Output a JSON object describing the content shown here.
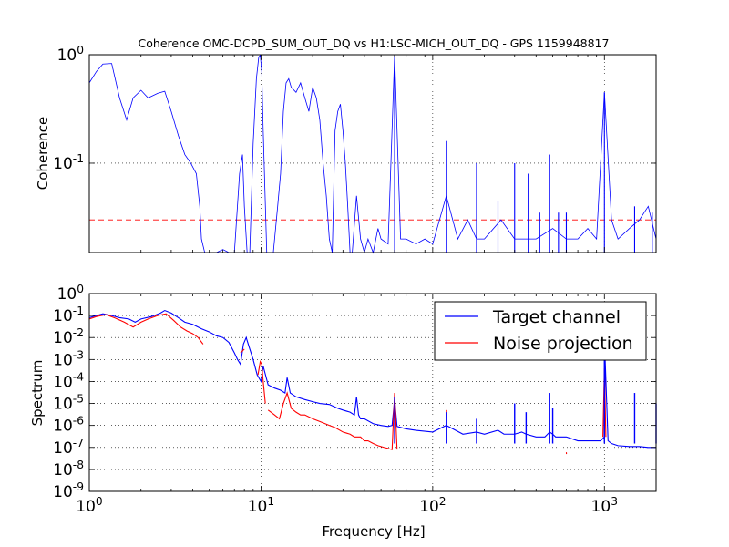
{
  "title": "Coherence OMC-DCPD_SUM_OUT_DQ vs H1:LSC-MICH_OUT_DQ - GPS 1159948817",
  "chart_data": [
    {
      "type": "line",
      "panel": "top",
      "ylabel": "Coherence",
      "xscale": "log",
      "yscale": "log",
      "xlim": [
        1,
        2000
      ],
      "ylim": [
        0.015,
        1
      ],
      "yticks": [
        {
          "v": 1,
          "label": "10^0"
        },
        {
          "v": 0.1,
          "label": "10^-1"
        }
      ],
      "grid": true,
      "colors": {
        "coherence": "#0000ff",
        "threshold": "#ff0000"
      },
      "threshold": 0.03,
      "series": [
        {
          "key": "coherence",
          "x": [
            1,
            1.1,
            1.2,
            1.35,
            1.5,
            1.65,
            1.8,
            2.0,
            2.2,
            2.5,
            2.75,
            3.0,
            3.3,
            3.6,
            3.9,
            4.2,
            4.4,
            4.5,
            4.7,
            5.0,
            5.5,
            6.0,
            6.5,
            7.0,
            7.5,
            7.8,
            8.0,
            8.3,
            8.6,
            9.0,
            9.4,
            9.7,
            9.9,
            10.1,
            10.3,
            10.8,
            11.3,
            11.8,
            12.5,
            13.0,
            13.5,
            14.0,
            14.5,
            15.0,
            16.0,
            17.0,
            18.0,
            19.0,
            20.0,
            21.0,
            22.0,
            23.0,
            24.0,
            25.0,
            26.0,
            27.0,
            28.0,
            29.0,
            30.0,
            31.0,
            32.0,
            33.0,
            34.0,
            36.0,
            38.0,
            40.0,
            42.0,
            45.0,
            48.0,
            50.0,
            55.0,
            60.0,
            65.0,
            70.0,
            80.0,
            90.0,
            100,
            120,
            140,
            160,
            180,
            200,
            250,
            300,
            400,
            500,
            600,
            700,
            800,
            900,
            1000,
            1100,
            1200,
            1400,
            1600,
            1800,
            2000
          ],
          "y": [
            0.55,
            0.7,
            0.82,
            0.83,
            0.4,
            0.25,
            0.4,
            0.47,
            0.4,
            0.44,
            0.46,
            0.3,
            0.18,
            0.12,
            0.1,
            0.08,
            0.04,
            0.02,
            0.015,
            0.015,
            0.015,
            0.016,
            0.015,
            0.015,
            0.08,
            0.12,
            0.04,
            0.015,
            0.015,
            0.15,
            0.6,
            0.95,
            0.99,
            0.7,
            0.2,
            0.015,
            0.015,
            0.015,
            0.04,
            0.08,
            0.3,
            0.55,
            0.6,
            0.5,
            0.45,
            0.55,
            0.4,
            0.3,
            0.5,
            0.4,
            0.25,
            0.1,
            0.05,
            0.02,
            0.015,
            0.2,
            0.3,
            0.35,
            0.2,
            0.1,
            0.04,
            0.015,
            0.015,
            0.05,
            0.02,
            0.015,
            0.02,
            0.015,
            0.025,
            0.02,
            0.018,
            1.0,
            0.02,
            0.02,
            0.018,
            0.02,
            0.018,
            0.05,
            0.02,
            0.03,
            0.02,
            0.02,
            0.03,
            0.02,
            0.02,
            0.025,
            0.02,
            0.02,
            0.025,
            0.02,
            0.45,
            0.03,
            0.02,
            0.025,
            0.03,
            0.04,
            0.02
          ]
        }
      ],
      "spikes": [
        {
          "x": 60,
          "y": 1.0
        },
        {
          "x": 120,
          "y": 0.16
        },
        {
          "x": 180,
          "y": 0.1
        },
        {
          "x": 240,
          "y": 0.045
        },
        {
          "x": 300,
          "y": 0.1
        },
        {
          "x": 360,
          "y": 0.08
        },
        {
          "x": 420,
          "y": 0.035
        },
        {
          "x": 480,
          "y": 0.12
        },
        {
          "x": 540,
          "y": 0.035
        },
        {
          "x": 600,
          "y": 0.035
        },
        {
          "x": 1000,
          "y": 0.45
        },
        {
          "x": 1500,
          "y": 0.04
        },
        {
          "x": 1900,
          "y": 0.035
        }
      ]
    },
    {
      "type": "line",
      "panel": "bottom",
      "ylabel": "Spectrum",
      "xlabel": "Frequency [Hz]",
      "xscale": "log",
      "yscale": "log",
      "xlim": [
        1,
        2000
      ],
      "ylim": [
        1e-09,
        1
      ],
      "xticks": [
        {
          "v": 1,
          "label": "10^0"
        },
        {
          "v": 10,
          "label": "10^1"
        },
        {
          "v": 100,
          "label": "10^2"
        },
        {
          "v": 1000,
          "label": "10^3"
        }
      ],
      "yticks": [
        {
          "v": 1,
          "label": "10^0"
        },
        {
          "v": 0.1,
          "label": "10^-1"
        },
        {
          "v": 0.01,
          "label": "10^-2"
        },
        {
          "v": 0.001,
          "label": "10^-3"
        },
        {
          "v": 0.0001,
          "label": "10^-4"
        },
        {
          "v": 1e-05,
          "label": "10^-5"
        },
        {
          "v": 1e-06,
          "label": "10^-6"
        },
        {
          "v": 1e-07,
          "label": "10^-7"
        },
        {
          "v": 1e-08,
          "label": "10^-8"
        },
        {
          "v": 1e-09,
          "label": "10^-9"
        }
      ],
      "grid": true,
      "legend": {
        "position": "top-right",
        "entries": [
          {
            "name": "Target channel",
            "color": "#0000ff"
          },
          {
            "name": "Noise projection",
            "color": "#ff0000"
          }
        ]
      },
      "series": [
        {
          "name": "Target channel",
          "color": "#0000ff",
          "x": [
            1,
            1.1,
            1.2,
            1.35,
            1.5,
            1.7,
            1.85,
            2.0,
            2.3,
            2.6,
            2.75,
            3.0,
            3.3,
            3.6,
            4.0,
            4.5,
            5.0,
            5.5,
            6.0,
            6.5,
            7.0,
            7.3,
            7.6,
            7.9,
            8.2,
            8.5,
            9.0,
            9.5,
            10.0,
            10.3,
            11.0,
            12.0,
            13.0,
            13.8,
            14.2,
            14.8,
            16.0,
            18.0,
            20.0,
            22.0,
            25.0,
            28.0,
            30.0,
            33.0,
            35.0,
            36.0,
            37.0,
            38.0,
            40.0,
            45.0,
            50.0,
            55.0,
            58.0,
            60.0,
            62.0,
            70.0,
            80.0,
            100,
            120,
            150,
            180,
            200,
            240,
            260,
            300,
            330,
            350,
            400,
            450,
            480,
            500,
            520,
            600,
            700,
            800,
            900,
            950,
            1000,
            1010,
            1050,
            1100,
            1200,
            1400,
            1600,
            1800,
            2000
          ],
          "y": [
            0.08,
            0.1,
            0.12,
            0.1,
            0.08,
            0.07,
            0.05,
            0.07,
            0.09,
            0.13,
            0.17,
            0.13,
            0.08,
            0.05,
            0.04,
            0.025,
            0.018,
            0.012,
            0.01,
            0.006,
            0.002,
            0.001,
            0.0006,
            0.005,
            0.01,
            0.004,
            0.001,
            0.0002,
            0.0001,
            0.0005,
            7e-05,
            5e-05,
            4e-05,
            3e-05,
            0.00015,
            3e-05,
            2e-05,
            1.5e-05,
            1.2e-05,
            1e-05,
            9e-06,
            6e-06,
            5e-06,
            4e-06,
            3e-06,
            2e-05,
            3e-06,
            2e-06,
            2e-06,
            1.2e-06,
            1e-06,
            9e-07,
            1e-06,
            1.5e-05,
            9e-07,
            7e-07,
            6e-07,
            5e-07,
            1e-06,
            4e-07,
            5e-07,
            4e-07,
            6e-07,
            4e-07,
            4e-07,
            5e-07,
            4e-07,
            3e-07,
            3e-07,
            5e-07,
            4e-07,
            3e-07,
            3e-07,
            2e-07,
            2e-07,
            2e-07,
            2e-07,
            3e-07,
            0.001,
            2e-07,
            1.5e-07,
            1.2e-07,
            1.1e-07,
            1.1e-07,
            1e-07,
            1e-07
          ]
        },
        {
          "name": "Noise projection",
          "color": "#ff0000",
          "segments": [
            {
              "x": [
                1,
                1.1,
                1.25,
                1.4,
                1.6,
                1.8,
                2.0,
                2.2,
                2.5,
                2.8,
                3.1,
                3.4,
                3.7,
                4.0,
                4.3,
                4.6
              ],
              "y": [
                0.07,
                0.09,
                0.11,
                0.08,
                0.05,
                0.03,
                0.05,
                0.07,
                0.1,
                0.12,
                0.06,
                0.03,
                0.02,
                0.015,
                0.01,
                0.005
              ]
            },
            {
              "x": [
                7.6,
                8.0
              ],
              "y": [
                0.002,
                0.003
              ]
            },
            {
              "x": [
                9.6,
                9.9,
                10.1,
                10.3,
                10.6
              ],
              "y": [
                0.0002,
                0.0008,
                0.0006,
                0.0001,
                1e-05
              ]
            },
            {
              "x": [
                11,
                12,
                12.8,
                13.5,
                14.2,
                15,
                16,
                17,
                18,
                20,
                22,
                25,
                27,
                30,
                33,
                35,
                38,
                40,
                42,
                45,
                48,
                52,
                55,
                58,
                60,
                62
              ],
              "y": [
                5e-06,
                3e-06,
                2e-06,
                1e-05,
                3e-05,
                6e-06,
                4e-06,
                3e-06,
                3e-06,
                2e-06,
                1.5e-06,
                1e-06,
                8e-07,
                5e-07,
                4e-07,
                3e-07,
                3e-07,
                2e-07,
                2e-07,
                1.5e-07,
                1.2e-07,
                1e-07,
                9e-08,
                8e-08,
                3e-05,
                8e-08
              ]
            },
            {
              "x": [
                120,
                121
              ],
              "y": [
                5e-06,
                4e-07
              ]
            },
            {
              "x": [
                180,
                181
              ],
              "y": [
                3e-07,
                2e-07
              ]
            },
            {
              "x": [
                600,
                601
              ],
              "y": [
                6e-08,
                5e-08
              ]
            },
            {
              "x": [
                980,
                1000,
                1020
              ],
              "y": [
                3e-07,
                0.0004,
                3e-07
              ]
            }
          ]
        }
      ],
      "spikes": [
        {
          "x": 60,
          "y": 2e-05
        },
        {
          "x": 120,
          "y": 4e-06
        },
        {
          "x": 180,
          "y": 2e-06
        },
        {
          "x": 300,
          "y": 1e-05
        },
        {
          "x": 350,
          "y": 4e-06
        },
        {
          "x": 480,
          "y": 3e-05
        },
        {
          "x": 500,
          "y": 6e-06
        },
        {
          "x": 1000,
          "y": 0.001
        },
        {
          "x": 1500,
          "y": 3e-05
        },
        {
          "x": 2000,
          "y": 1e-05
        }
      ]
    }
  ]
}
